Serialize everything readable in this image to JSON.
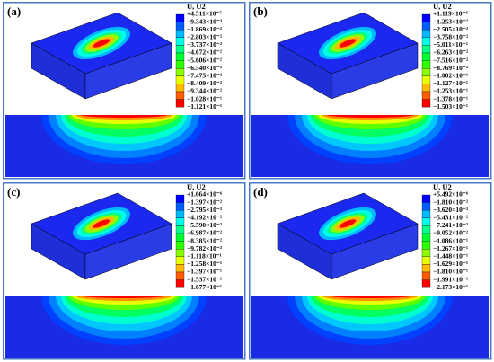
{
  "panels": [
    {
      "label": "(a)",
      "legend_title": "U, U2",
      "legend_labels": [
        "+4.511×10⁻⁷",
        "−9.343×10⁻³",
        "−1.869×10⁻²",
        "−2.803×10⁻²",
        "−3.737×10⁻²",
        "−4.672×10⁻²",
        "−5.606×10⁻²",
        "−6.540×10⁻²",
        "−7.475×10⁻²",
        "−8.409×10⁻²",
        "−9.344×10⁻²",
        "−1.028×10⁻¹",
        "−1.121×10⁻¹"
      ]
    },
    {
      "label": "(b)",
      "legend_title": "U, U2",
      "legend_labels": [
        "+1.119×10⁻⁶",
        "−1.253×10⁻²",
        "−2.505×10⁻²",
        "−3.758×10⁻²",
        "−5.011×10⁻²",
        "−6.263×10⁻²",
        "−7.516×10⁻²",
        "−8.769×10⁻²",
        "−1.002×10⁻¹",
        "−1.127×10⁻¹",
        "−1.253×10⁻¹",
        "−1.378×10⁻¹",
        "−1.503×10⁻¹"
      ]
    },
    {
      "label": "(c)",
      "legend_title": "U, U2",
      "legend_labels": [
        "+1.664×10⁻⁶",
        "−1.397×10⁻²",
        "−2.795×10⁻²",
        "−4.192×10⁻²",
        "−5.590×10⁻²",
        "−6.987×10⁻²",
        "−8.385×10⁻²",
        "−9.782×10⁻²",
        "−1.118×10⁻¹",
        "−1.258×10⁻¹",
        "−1.397×10⁻¹",
        "−1.537×10⁻¹",
        "−1.677×10⁻¹"
      ]
    },
    {
      "label": "(d)",
      "legend_title": "U, U2",
      "legend_labels": [
        "+5.492×10⁻⁶",
        "−1.810×10⁻²",
        "−3.620×10⁻²",
        "−5.431×10⁻²",
        "−7.241×10⁻²",
        "−9.052×10⁻²",
        "−1.086×10⁻¹",
        "−1.267×10⁻¹",
        "−1.448×10⁻¹",
        "−1.629×10⁻¹",
        "−1.810×10⁻¹",
        "−1.991×10⁻¹",
        "−2.173×10⁻¹"
      ]
    }
  ]
}
